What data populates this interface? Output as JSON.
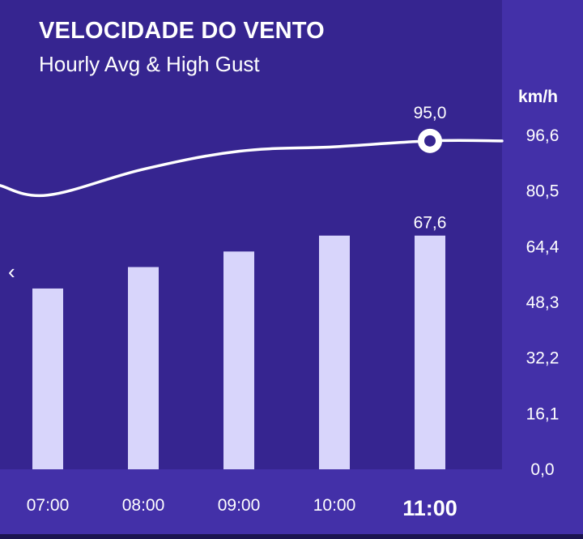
{
  "header": {
    "title": "VELOCIDADE DO VENTO",
    "subtitle": "Hourly Avg & High Gust"
  },
  "nav": {
    "prev_icon": "chevron-left-icon",
    "prev_glyph": "‹"
  },
  "colors": {
    "plot_background": "#362590",
    "panel_background": "#4330a8",
    "bar_color": "#d8d5fb",
    "line_color": "#ffffff"
  },
  "chart_data": {
    "type": "bar",
    "title": "VELOCIDADE DO VENTO",
    "subtitle": "Hourly Avg & High Gust",
    "unit": "km/h",
    "categories": [
      "07:00",
      "08:00",
      "09:00",
      "10:00",
      "11:00"
    ],
    "selected_category": "11:00",
    "y_ticks": [
      "0,0",
      "16,1",
      "32,2",
      "48,3",
      "64,4",
      "80,5",
      "96,6"
    ],
    "ylim": [
      0,
      96.6
    ],
    "legend": "none",
    "grid": false,
    "series": [
      {
        "name": "Hourly Avg",
        "type": "bar",
        "values": [
          52.3,
          58.5,
          63.0,
          67.6,
          67.6
        ]
      },
      {
        "name": "High Gust",
        "type": "line",
        "values": [
          79.3,
          86.8,
          92.0,
          93.3,
          95.0
        ]
      }
    ],
    "annotations": {
      "bar_label": "67,6",
      "line_label": "95,0"
    }
  }
}
